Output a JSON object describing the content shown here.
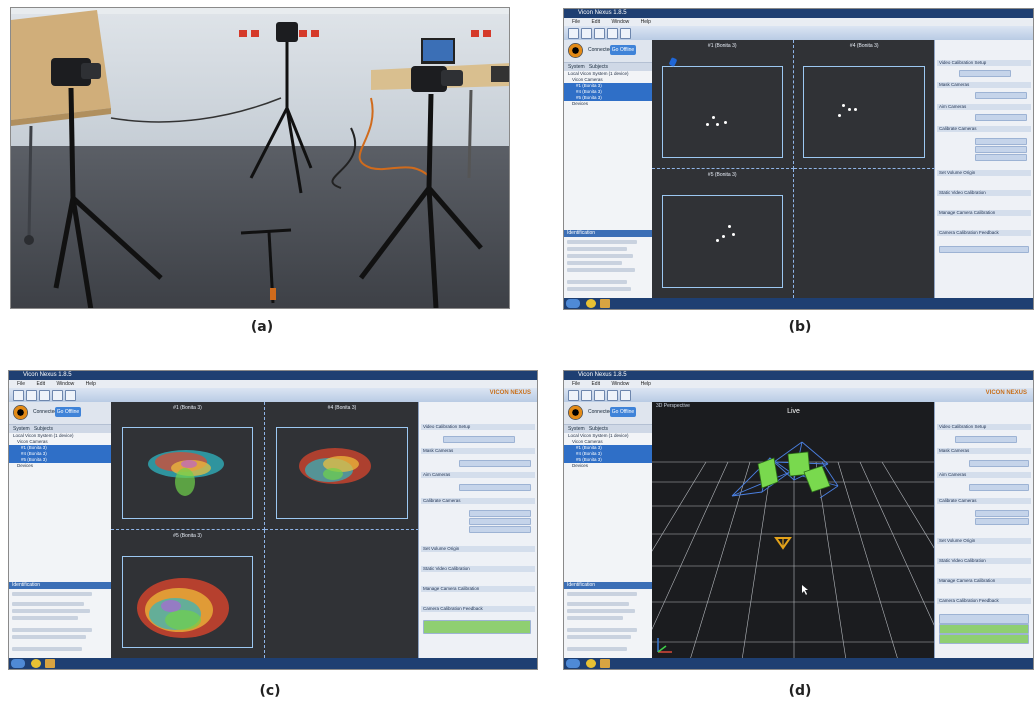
{
  "captions": [
    "(a)",
    "(b)",
    "(c)",
    "(d)"
  ],
  "software": {
    "title": "Vicon Nexus 1.8.5",
    "menu": [
      "File",
      "Edit",
      "Window",
      "Help"
    ],
    "brand": "VICON NEXUS",
    "connection_label": "Connected",
    "connection_button": "Go Offline",
    "tabs": [
      "System",
      "Subjects"
    ],
    "tree": [
      "Local Vicon System (1 device)",
      "Vicon Cameras",
      "#1 (Bonita 3)",
      "#4 (Bonita 3)",
      "#5 (Bonita 3)",
      "Devices"
    ],
    "props": [
      "Identification",
      "Settings",
      "Centroid Fitting",
      "Vili Hardware",
      "Calibration"
    ],
    "right_sections": [
      "Video Calibration Setup",
      "Mask Cameras",
      "Aim Cameras",
      "Calibrate Cameras",
      "Set Volume Origin",
      "Static Video Calibration",
      "Manage Camera Calibration",
      "Camera Calibration Feedback"
    ]
  },
  "screen_b": {
    "camera_labels": [
      "#1 (Bonita 3)",
      "#4 (Bonita 3)",
      "#5 (Bonita 3)"
    ]
  },
  "screen_c": {
    "camera_labels": [
      "#1 (Bonita 3)",
      "#4 (Bonita 3)",
      "#5 (Bonita 3)"
    ]
  },
  "screen_d": {
    "view_title": "3D Perspective",
    "live_label": "Live"
  },
  "colors": {
    "titlebar": "#1e3f72",
    "selection": "#2f6fc7",
    "camera_frame": "#9cc8f2",
    "cone": "#4a7fe0",
    "camera_body": "#79d94e",
    "wand": "#e3a21a"
  }
}
